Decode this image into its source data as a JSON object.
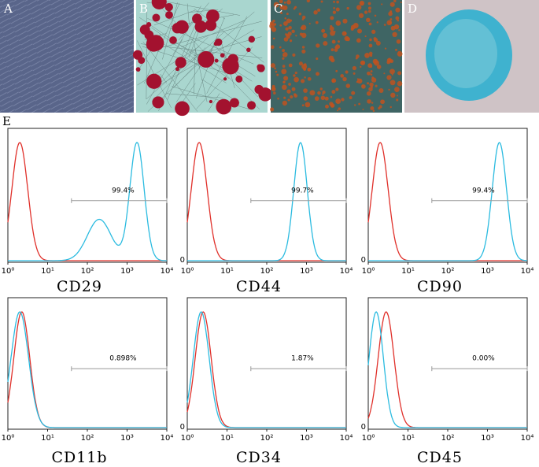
{
  "image_panels": [
    {
      "label": "A"
    },
    {
      "label": "B"
    },
    {
      "label": "C"
    },
    {
      "label": "D"
    }
  ],
  "section_label": "E",
  "x_tick_labels": [
    "10⁰",
    "10¹",
    "10²",
    "10³",
    "10⁴"
  ],
  "zero_label": "0",
  "histograms": [
    {
      "marker": "CD29",
      "gate": "99.4%"
    },
    {
      "marker": "CD44",
      "gate": "99.7%"
    },
    {
      "marker": "CD90",
      "gate": "99.4%"
    },
    {
      "marker": "CD11b",
      "gate": "0.898%"
    },
    {
      "marker": "CD34",
      "gate": "1.87%"
    },
    {
      "marker": "CD45",
      "gate": "0.00%"
    }
  ]
}
